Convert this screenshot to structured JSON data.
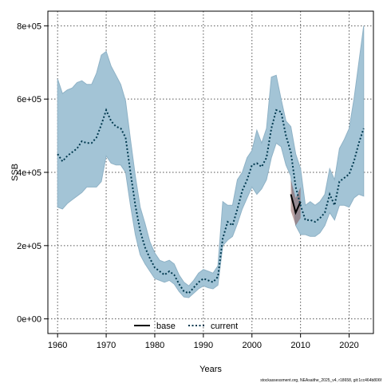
{
  "chart_data": {
    "type": "line",
    "xlabel": "Years",
    "ylabel": "SSB",
    "xlim": [
      1958,
      2025
    ],
    "ylim": [
      -40000,
      840000
    ],
    "x_ticks": [
      1960,
      1970,
      1980,
      1990,
      2000,
      2010,
      2020
    ],
    "y_ticks": [
      0,
      200000,
      400000,
      600000,
      800000
    ],
    "y_tick_labels": [
      "0e+00",
      "2e+05",
      "4e+05",
      "6e+05",
      "8e+05"
    ],
    "grid": true,
    "legend_position": "bottom-center",
    "footer": "stockassessment.org, NEAsaithe_2025_v4, r18658, git:1cc464b806f",
    "colors": {
      "band": "#a3c4d6",
      "band_edge": "#8fb2c6",
      "base": "#000000",
      "current": "#00394f",
      "grid": "#555555"
    },
    "series": [
      {
        "name": "base",
        "style": "solid",
        "x": [
          2008,
          2009,
          2010
        ],
        "y": [
          340000,
          290000,
          320000
        ],
        "lower": [
          295000,
          255000,
          275000
        ],
        "upper": [
          380000,
          330000,
          360000
        ]
      },
      {
        "name": "current",
        "style": "dotted",
        "x": [
          1960,
          1961,
          1962,
          1963,
          1964,
          1965,
          1966,
          1967,
          1968,
          1969,
          1970,
          1971,
          1972,
          1973,
          1974,
          1975,
          1976,
          1977,
          1978,
          1979,
          1980,
          1981,
          1982,
          1983,
          1984,
          1985,
          1986,
          1987,
          1988,
          1989,
          1990,
          1991,
          1992,
          1993,
          1994,
          1995,
          1996,
          1997,
          1998,
          1999,
          2000,
          2001,
          2002,
          2003,
          2004,
          2005,
          2006,
          2007,
          2008,
          2009,
          2010,
          2011,
          2012,
          2013,
          2014,
          2015,
          2016,
          2017,
          2018,
          2019,
          2020,
          2021,
          2022,
          2023
        ],
        "y": [
          450000,
          430000,
          445000,
          455000,
          465000,
          485000,
          480000,
          480000,
          495000,
          530000,
          570000,
          540000,
          525000,
          520000,
          495000,
          400000,
          310000,
          240000,
          195000,
          165000,
          140000,
          130000,
          120000,
          130000,
          120000,
          95000,
          75000,
          70000,
          85000,
          100000,
          110000,
          105000,
          100000,
          115000,
          220000,
          265000,
          255000,
          300000,
          350000,
          380000,
          420000,
          425000,
          415000,
          440000,
          520000,
          570000,
          565000,
          500000,
          455000,
          360000,
          310000,
          270000,
          270000,
          265000,
          275000,
          290000,
          340000,
          310000,
          375000,
          385000,
          395000,
          430000,
          480000,
          520000
        ],
        "lower": [
          305000,
          300000,
          315000,
          325000,
          335000,
          345000,
          360000,
          360000,
          360000,
          375000,
          445000,
          425000,
          420000,
          420000,
          400000,
          310000,
          230000,
          175000,
          150000,
          130000,
          110000,
          105000,
          100000,
          105000,
          95000,
          75000,
          60000,
          58000,
          70000,
          82000,
          90000,
          85000,
          82000,
          92000,
          200000,
          215000,
          225000,
          260000,
          300000,
          330000,
          360000,
          340000,
          355000,
          380000,
          440000,
          480000,
          470000,
          420000,
          390000,
          255000,
          230000,
          230000,
          225000,
          225000,
          235000,
          255000,
          290000,
          270000,
          310000,
          310000,
          305000,
          330000,
          340000,
          335000
        ],
        "upper": [
          655000,
          615000,
          625000,
          630000,
          645000,
          650000,
          640000,
          640000,
          670000,
          720000,
          730000,
          690000,
          665000,
          640000,
          595000,
          490000,
          390000,
          305000,
          260000,
          210000,
          180000,
          160000,
          155000,
          160000,
          150000,
          120000,
          100000,
          90000,
          105000,
          125000,
          135000,
          130000,
          125000,
          145000,
          320000,
          310000,
          310000,
          380000,
          400000,
          440000,
          460000,
          515000,
          480000,
          520000,
          660000,
          665000,
          600000,
          540000,
          525000,
          450000,
          410000,
          310000,
          320000,
          310000,
          320000,
          340000,
          410000,
          380000,
          465000,
          490000,
          520000,
          600000,
          700000,
          800000
        ]
      }
    ]
  }
}
